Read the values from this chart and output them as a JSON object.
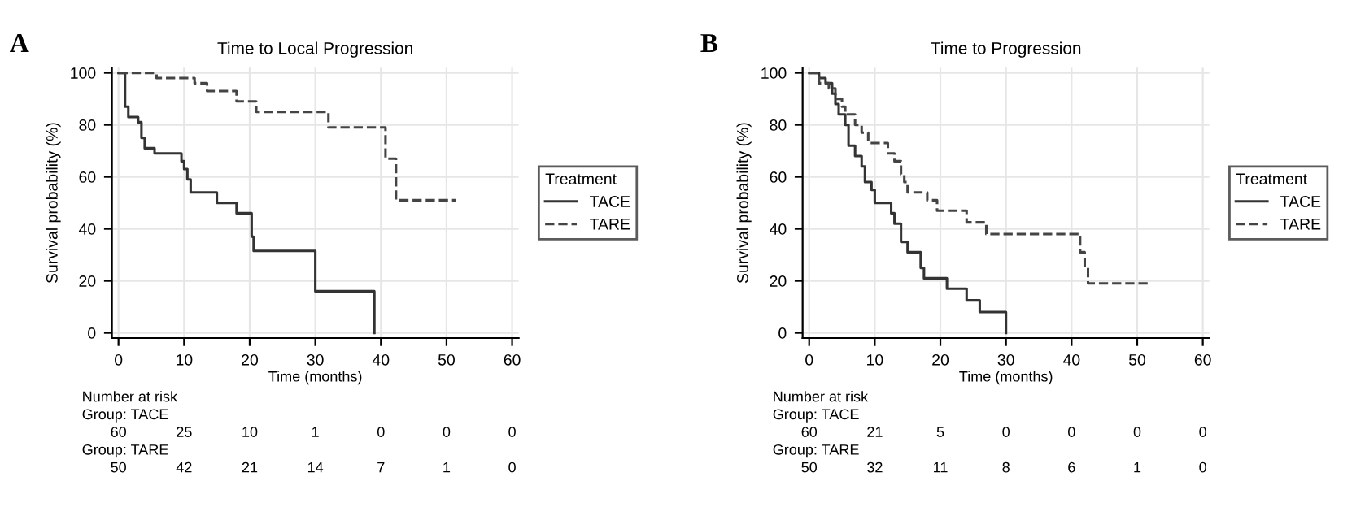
{
  "chart_data": [
    {
      "type": "step",
      "title": "Time to Local Progression",
      "xlabel": "Time (months)",
      "ylabel": "Survival probability (%)",
      "legend_title": "Treatment",
      "legend": "right",
      "grid": true,
      "xlim": [
        -1,
        61
      ],
      "ylim": [
        -2,
        102
      ],
      "xticks": [
        0,
        10,
        20,
        30,
        40,
        50,
        60
      ],
      "yticks": [
        0,
        20,
        40,
        60,
        80,
        100
      ],
      "series": [
        {
          "name": "TACE",
          "color": "#333333",
          "line_style": "solid",
          "x": [
            0,
            1,
            1.5,
            3,
            3.5,
            4,
            5.5,
            9.6,
            10,
            10.5,
            11,
            15,
            18,
            20.3,
            20.6,
            30,
            39
          ],
          "values": [
            100,
            87,
            83,
            81,
            75,
            71,
            69,
            66,
            63,
            59,
            54,
            50,
            46,
            37,
            31.5,
            16,
            0
          ]
        },
        {
          "name": "TARE",
          "color": "#444444",
          "line_style": "dashed",
          "x": [
            0,
            5.8,
            11.6,
            13.5,
            18,
            21,
            32,
            40.7,
            42.3,
            51.5
          ],
          "values": [
            100,
            98,
            96,
            93,
            89,
            85,
            79,
            67,
            51,
            51
          ]
        }
      ],
      "annotations": [
        "A",
        "Number at risk",
        "Group: TACE",
        "60 25 10 1 0 0 0",
        "Group: TARE",
        "50 42 21 14 7 1 0"
      ]
    },
    {
      "type": "step",
      "title": "Time to Progression",
      "xlabel": "Time (months)",
      "ylabel": "Survival probability (%)",
      "legend_title": "Treatment",
      "legend": "right",
      "grid": true,
      "xlim": [
        -1,
        61
      ],
      "ylim": [
        -2,
        102
      ],
      "xticks": [
        0,
        10,
        20,
        30,
        40,
        50,
        60
      ],
      "yticks": [
        0,
        20,
        40,
        60,
        80,
        100
      ],
      "series": [
        {
          "name": "TACE",
          "color": "#333333",
          "line_style": "solid",
          "x": [
            0,
            1.5,
            2.5,
            3.5,
            4,
            4.5,
            5.5,
            6,
            7,
            8,
            8.5,
            9.5,
            10,
            12.5,
            13,
            14,
            15,
            17,
            17.5,
            19,
            21,
            24,
            26,
            30
          ],
          "values": [
            100,
            98,
            96,
            92,
            88,
            84,
            80,
            72,
            68,
            64,
            58,
            55,
            50,
            46,
            42,
            35,
            31,
            25,
            21,
            21,
            17,
            12.5,
            8,
            0
          ]
        },
        {
          "name": "TARE",
          "color": "#444444",
          "line_style": "dashed",
          "x": [
            0,
            1.5,
            3,
            4,
            5,
            5.5,
            7,
            8,
            9,
            12,
            13,
            14,
            14.5,
            15,
            18,
            19.5,
            24,
            27,
            41.3,
            42,
            42.5,
            52
          ],
          "values": [
            100,
            96,
            94,
            90,
            87,
            84,
            80,
            77,
            73,
            69,
            66,
            61,
            58,
            54,
            51,
            47,
            42.5,
            38,
            31,
            25,
            19,
            19
          ]
        }
      ],
      "annotations": [
        "B",
        "Number at risk",
        "Group: TACE",
        "60 21 5 0 0 0 0",
        "Group: TARE",
        "50 32 11 8 6 1 0"
      ]
    }
  ]
}
